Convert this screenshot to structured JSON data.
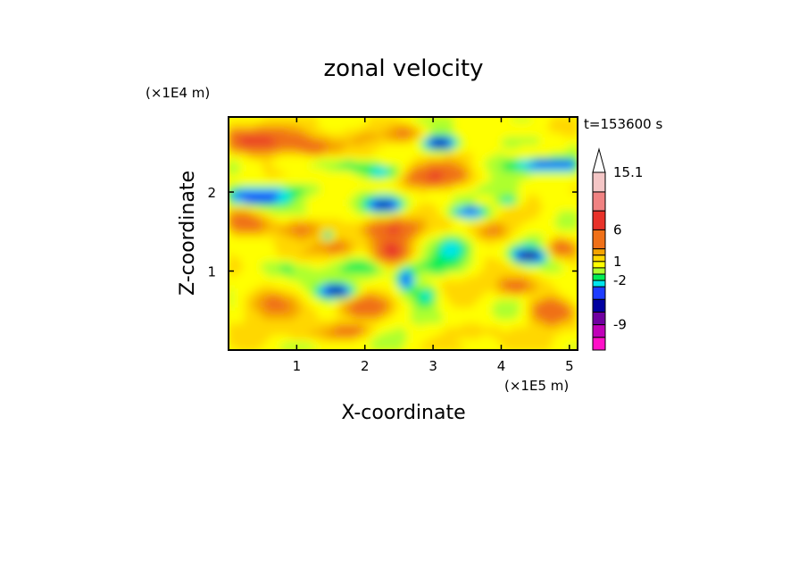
{
  "chart_data": {
    "type": "heatmap",
    "title": "zonal velocity",
    "xlabel": "X-coordinate",
    "ylabel": "Z-coordinate",
    "x_unit": "(×1E5 m)",
    "y_unit": "(×1E4 m)",
    "time_label": "t=153600 s",
    "xlim": [
      0,
      5.12
    ],
    "ylim": [
      0,
      2.95
    ],
    "x_ticks": [
      1,
      2,
      3,
      4,
      5
    ],
    "y_ticks": [
      1,
      2
    ],
    "x_tick_labels": [
      "1",
      "2",
      "3",
      "4",
      "5"
    ],
    "y_tick_labels": [
      "1",
      "2"
    ],
    "colorbar": {
      "tick_values": [
        15.1,
        6,
        1,
        -2,
        -9
      ],
      "tick_labels": [
        "15.1",
        "6",
        "1",
        "-2",
        "-9"
      ],
      "extend": "max",
      "levels_top_to_bottom": [
        {
          "color": "#f4c6c6",
          "lo": 12,
          "hi": 15.1
        },
        {
          "color": "#f08282",
          "lo": 9,
          "hi": 12
        },
        {
          "color": "#e8322a",
          "lo": 6,
          "hi": 9
        },
        {
          "color": "#f07018",
          "lo": 3,
          "hi": 6
        },
        {
          "color": "#f5a300",
          "lo": 2,
          "hi": 3
        },
        {
          "color": "#ffd700",
          "lo": 1,
          "hi": 2
        },
        {
          "color": "#ffff00",
          "lo": 0,
          "hi": 1
        },
        {
          "color": "#adff2f",
          "lo": -1,
          "hi": 0
        },
        {
          "color": "#00ee55",
          "lo": -2,
          "hi": -1
        },
        {
          "color": "#00e5ee",
          "lo": -3,
          "hi": -2
        },
        {
          "color": "#1e3cff",
          "lo": -5,
          "hi": -3
        },
        {
          "color": "#0000a0",
          "lo": -7,
          "hi": -5
        },
        {
          "color": "#7000a0",
          "lo": -9,
          "hi": -7
        },
        {
          "color": "#c000b8",
          "lo": -11,
          "hi": -9
        },
        {
          "color": "#ff10c8",
          "lo": -13,
          "hi": -11
        }
      ]
    },
    "features": [
      {
        "x": 0.45,
        "z": 2.65,
        "value": 5
      },
      {
        "x": 0.3,
        "z": 1.9,
        "value": -5
      },
      {
        "x": 1.6,
        "z": 0.75,
        "value": -6
      },
      {
        "x": 2.4,
        "z": 1.55,
        "value": 4
      },
      {
        "x": 2.4,
        "z": 1.25,
        "value": 5
      },
      {
        "x": 3.3,
        "z": 1.3,
        "value": -2.5
      },
      {
        "x": 2.95,
        "z": 0.7,
        "value": -3
      },
      {
        "x": 3.1,
        "z": 2.6,
        "value": -7
      },
      {
        "x": 3.0,
        "z": 2.2,
        "value": 5
      },
      {
        "x": 3.55,
        "z": 1.75,
        "value": -4
      },
      {
        "x": 4.4,
        "z": 1.2,
        "value": -5
      },
      {
        "x": 4.8,
        "z": 2.35,
        "value": -4
      }
    ]
  }
}
